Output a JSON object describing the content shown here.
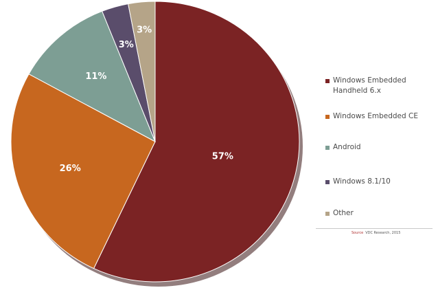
{
  "chart_data": {
    "type": "pie",
    "categories": [
      "Windows Embedded Handheld 6.x",
      "Windows Embedded CE",
      "Android",
      "Windows 8.1/10",
      "Other"
    ],
    "values": [
      57,
      26,
      11,
      3,
      3
    ],
    "labels": [
      "57%",
      "26%",
      "11%",
      "3%",
      "3%"
    ],
    "colors": [
      "#7b2324",
      "#c7671f",
      "#7d9e94",
      "#5a4d6b",
      "#b5a488"
    ],
    "legend_position": "right",
    "start_angle_deg": 0,
    "direction": "clockwise"
  },
  "legend": {
    "items": [
      {
        "label": "Windows Embedded Handheld 6.x",
        "color": "#7b2324"
      },
      {
        "label": "Windows Embedded CE",
        "color": "#c7671f"
      },
      {
        "label": "Android",
        "color": "#7d9e94"
      },
      {
        "label": "Windows 8.1/10",
        "color": "#5a4d6b"
      },
      {
        "label": "Other",
        "color": "#b5a488"
      }
    ]
  },
  "source": {
    "key": "Source",
    "text": "VDC Research, 2015"
  }
}
